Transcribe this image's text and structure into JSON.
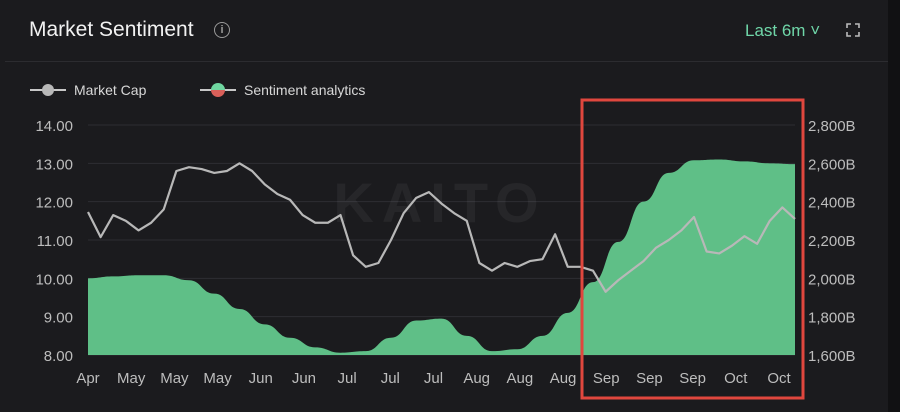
{
  "header": {
    "title": "Market Sentiment",
    "range_label": "Last 6m ˅"
  },
  "icons": {
    "info": "info-icon",
    "expand": "expand-icon"
  },
  "colors": {
    "sentiment": "#5fbf87",
    "market_cap": "#b8b8b8",
    "highlight": "#e0473e",
    "range": "#6fd6a8"
  },
  "watermark": "KAITO",
  "chart_data": {
    "type": "line+area",
    "legend": [
      {
        "name": "Market Cap"
      },
      {
        "name": "Sentiment analytics"
      }
    ],
    "legend_position": "top-left",
    "x_ticks": [
      "Apr",
      "May",
      "May",
      "May",
      "Jun",
      "Jun",
      "Jul",
      "Jul",
      "Jul",
      "Aug",
      "Aug",
      "Aug",
      "Sep",
      "Sep",
      "Sep",
      "Oct",
      "Oct"
    ],
    "y_left": {
      "ticks": [
        "14.00",
        "13.00",
        "12.00",
        "11.00",
        "10.00",
        "9.00",
        "8.00"
      ],
      "range": [
        8,
        14
      ]
    },
    "y_right": {
      "ticks": [
        "2,800B",
        "2,600B",
        "2,400B",
        "2,200B",
        "2,000B",
        "1,800B",
        "1,600B"
      ],
      "range": [
        1600,
        2800
      ]
    },
    "series": [
      {
        "name": "Sentiment analytics",
        "axis": "left",
        "type": "area",
        "values": [
          10.0,
          10.05,
          10.08,
          10.08,
          9.95,
          9.6,
          9.2,
          8.8,
          8.45,
          8.2,
          8.06,
          8.1,
          8.45,
          8.9,
          8.95,
          8.5,
          8.1,
          8.15,
          8.5,
          9.1,
          9.9,
          10.95,
          12.0,
          12.75,
          13.08,
          13.1,
          13.05,
          13.0,
          12.98
        ]
      },
      {
        "name": "Market Cap",
        "axis": "right",
        "type": "line",
        "values": [
          2346,
          2215,
          2330,
          2300,
          2250,
          2290,
          2360,
          2560,
          2580,
          2570,
          2550,
          2560,
          2600,
          2560,
          2490,
          2440,
          2410,
          2330,
          2290,
          2290,
          2330,
          2120,
          2060,
          2080,
          2200,
          2340,
          2420,
          2450,
          2390,
          2340,
          2300,
          2080,
          2040,
          2080,
          2060,
          2090,
          2100,
          2230,
          2060,
          2060,
          2040,
          1930,
          1990,
          2040,
          2090,
          2160,
          2200,
          2250,
          2320,
          2140,
          2130,
          2170,
          2220,
          2180,
          2300,
          2370,
          2310
        ]
      }
    ],
    "grid": true,
    "highlight_region": "Sep to Oct"
  }
}
